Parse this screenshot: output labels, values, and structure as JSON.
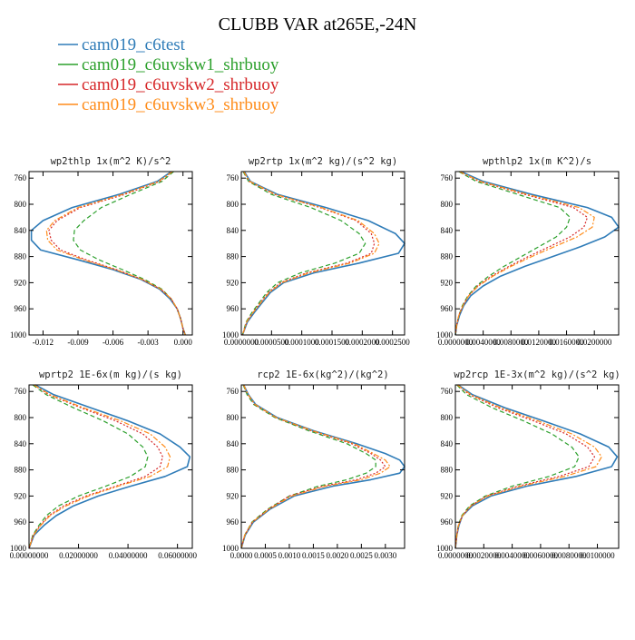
{
  "figure": {
    "title": "CLUBB VAR at265E,-24N",
    "colors": {
      "cam019_c6test": "#2f7cb8",
      "cam019_c6uvskw1_shrbuoy": "#2ca02c",
      "cam019_c6uvskw2_shrbuoy": "#d62728",
      "cam019_c6uvskw3_shrbuoy": "#ff8c1a"
    }
  },
  "legend": [
    {
      "name": "cam019_c6test",
      "color": "#2f7cb8",
      "style": "solid"
    },
    {
      "name": "cam019_c6uvskw1_shrbuoy",
      "color": "#2ca02c",
      "style": "dash"
    },
    {
      "name": "cam019_c6uvskw2_shrbuoy",
      "color": "#d62728",
      "style": "dot"
    },
    {
      "name": "cam019_c6uvskw3_shrbuoy",
      "color": "#ff8c1a",
      "style": "dashdot"
    }
  ],
  "chart_data": [
    {
      "type": "line",
      "title": "wp2thlp  1x(m^2 K)/s^2",
      "y": [
        750,
        765,
        785,
        805,
        825,
        840,
        855,
        870,
        885,
        900,
        915,
        930,
        945,
        960,
        975,
        990,
        1000
      ],
      "ylim": [
        1000,
        750
      ],
      "yticks": [
        "760",
        "800",
        "840",
        "880",
        "920",
        "960",
        "1000"
      ],
      "yticks_values": [
        760,
        800,
        840,
        880,
        920,
        960,
        1000
      ],
      "xlim": [
        -0.0132,
        0.0008
      ],
      "xticks": [
        "-0.012",
        "-0.009",
        "-0.006",
        "-0.003",
        "0.000"
      ],
      "xticks_values": [
        -0.012,
        -0.009,
        -0.006,
        -0.003,
        0.0
      ],
      "series": [
        {
          "name": "cam019_c6test",
          "values": [
            -0.001,
            -0.0022,
            -0.0055,
            -0.0095,
            -0.012,
            -0.013,
            -0.013,
            -0.0122,
            -0.009,
            -0.006,
            -0.0036,
            -0.002,
            -0.0011,
            -0.0005,
            -0.0002,
            0.0,
            0.0002
          ]
        },
        {
          "name": "cam019_c6uvskw1_shrbuoy",
          "values": [
            -0.0008,
            -0.0018,
            -0.0045,
            -0.007,
            -0.0085,
            -0.0093,
            -0.0094,
            -0.0088,
            -0.0072,
            -0.0052,
            -0.0033,
            -0.0018,
            -0.001,
            -0.0005,
            -0.0002,
            0.0,
            0.0002
          ]
        },
        {
          "name": "cam019_c6uvskw2_shrbuoy",
          "values": [
            -0.0009,
            -0.002,
            -0.005,
            -0.0088,
            -0.0108,
            -0.0115,
            -0.0113,
            -0.0105,
            -0.0083,
            -0.0057,
            -0.0035,
            -0.0019,
            -0.001,
            -0.0005,
            -0.0002,
            0.0,
            0.0002
          ]
        },
        {
          "name": "cam019_c6uvskw3_shrbuoy",
          "values": [
            -0.0009,
            -0.0021,
            -0.0052,
            -0.009,
            -0.011,
            -0.0117,
            -0.0116,
            -0.0108,
            -0.0085,
            -0.0058,
            -0.0035,
            -0.0019,
            -0.001,
            -0.0005,
            -0.0002,
            0.0,
            0.0002
          ]
        }
      ]
    },
    {
      "type": "line",
      "title": "wp2rtp  1x(m^2 kg)/(s^2 kg)",
      "y": [
        750,
        765,
        785,
        805,
        825,
        845,
        860,
        875,
        890,
        905,
        920,
        935,
        950,
        965,
        980,
        1000
      ],
      "ylim": [
        1000,
        750
      ],
      "yticks": [
        "760",
        "800",
        "840",
        "880",
        "920",
        "960",
        "1000"
      ],
      "yticks_values": [
        760,
        800,
        840,
        880,
        920,
        960,
        1000
      ],
      "xlim": [
        0,
        0.00027
      ],
      "xticks": [
        "0.0000000",
        "0.0000500",
        "0.0001000",
        "0.0001500",
        "0.0002000",
        "0.0002500"
      ],
      "xticks_values": [
        0,
        5e-05,
        0.0001,
        0.00015,
        0.0002,
        0.00025
      ],
      "series": [
        {
          "name": "cam019_c6test",
          "values": [
            5e-06,
            1.5e-05,
            6e-05,
            0.00014,
            0.00021,
            0.000255,
            0.00027,
            0.00026,
            0.000195,
            0.00012,
            7e-05,
            4.8e-05,
            3.5e-05,
            2.2e-05,
            1e-05,
            2e-06
          ]
        },
        {
          "name": "cam019_c6uvskw1_shrbuoy",
          "values": [
            3e-06,
            1.2e-05,
            5e-05,
            0.000115,
            0.000165,
            0.000195,
            0.000205,
            0.000195,
            0.000155,
            9.8e-05,
            6e-05,
            4.2e-05,
            3e-05,
            1.8e-05,
            8e-06,
            2e-06
          ]
        },
        {
          "name": "cam019_c6uvskw2_shrbuoy",
          "values": [
            4e-06,
            1.3e-05,
            5.5e-05,
            0.00013,
            0.00019,
            0.000215,
            0.00022,
            0.000215,
            0.000175,
            0.000108,
            6.5e-05,
            4.5e-05,
            3.2e-05,
            2e-05,
            9e-06,
            2e-06
          ]
        },
        {
          "name": "cam019_c6uvskw3_shrbuoy",
          "values": [
            4e-06,
            1.4e-05,
            5.7e-05,
            0.000132,
            0.000193,
            0.00022,
            0.000228,
            0.00022,
            0.00018,
            0.000112,
            6.7e-05,
            4.6e-05,
            3.3e-05,
            2e-05,
            9e-06,
            2e-06
          ]
        }
      ]
    },
    {
      "type": "line",
      "title": "wpthlp2  1x(m K^2)/s",
      "y": [
        750,
        765,
        785,
        805,
        820,
        835,
        850,
        865,
        880,
        895,
        910,
        925,
        940,
        955,
        970,
        985,
        1000
      ],
      "ylim": [
        1000,
        750
      ],
      "yticks": [
        "760",
        "800",
        "840",
        "880",
        "920",
        "960",
        "1000"
      ],
      "yticks_values": [
        760,
        800,
        840,
        880,
        920,
        960,
        1000
      ],
      "xlim": [
        0,
        0.0235
      ],
      "xticks": [
        "0.0000000",
        "0.0040000",
        "0.0080000",
        "0.0120000",
        "0.0160000",
        "0.0200000"
      ],
      "xticks_values": [
        0,
        0.004,
        0.008,
        0.012,
        0.016,
        0.02
      ],
      "series": [
        {
          "name": "cam019_c6test",
          "values": [
            0.0008,
            0.004,
            0.011,
            0.019,
            0.0225,
            0.0235,
            0.0215,
            0.018,
            0.014,
            0.01,
            0.0065,
            0.004,
            0.0022,
            0.0012,
            0.0006,
            0.0002,
            0.0
          ]
        },
        {
          "name": "cam019_c6uvskw1_shrbuoy",
          "values": [
            0.0005,
            0.003,
            0.009,
            0.015,
            0.0165,
            0.016,
            0.0145,
            0.012,
            0.0095,
            0.007,
            0.0048,
            0.003,
            0.0018,
            0.001,
            0.0005,
            0.0002,
            0.0
          ]
        },
        {
          "name": "cam019_c6uvskw2_shrbuoy",
          "values": [
            0.0006,
            0.0034,
            0.01,
            0.017,
            0.019,
            0.0185,
            0.0165,
            0.0135,
            0.0105,
            0.0077,
            0.0052,
            0.0032,
            0.0019,
            0.0011,
            0.0005,
            0.0002,
            0.0
          ]
        },
        {
          "name": "cam019_c6uvskw3_shrbuoy",
          "values": [
            0.0006,
            0.0036,
            0.0104,
            0.0178,
            0.02,
            0.0197,
            0.0175,
            0.0142,
            0.011,
            0.008,
            0.0054,
            0.0033,
            0.0019,
            0.0011,
            0.0005,
            0.0002,
            0.0
          ]
        }
      ]
    },
    {
      "type": "line",
      "title": "wprtp2  1E-6x(m kg)/(s kg)",
      "y": [
        750,
        765,
        785,
        805,
        825,
        845,
        860,
        875,
        890,
        905,
        920,
        935,
        950,
        965,
        980,
        1000
      ],
      "ylim": [
        1000,
        750
      ],
      "yticks": [
        "760",
        "800",
        "840",
        "880",
        "920",
        "960",
        "1000"
      ],
      "yticks_values": [
        760,
        800,
        840,
        880,
        920,
        960,
        1000
      ],
      "xlim": [
        0,
        0.066
      ],
      "xticks": [
        "0.00000000",
        "0.02000000",
        "0.04000000",
        "0.06000000"
      ],
      "xticks_values": [
        0,
        0.02,
        0.04,
        0.06
      ],
      "series": [
        {
          "name": "cam019_c6test",
          "values": [
            0.0025,
            0.01,
            0.025,
            0.04,
            0.053,
            0.061,
            0.065,
            0.064,
            0.055,
            0.041,
            0.028,
            0.018,
            0.011,
            0.006,
            0.002,
            0.0
          ]
        },
        {
          "name": "cam019_c6uvskw1_shrbuoy",
          "values": [
            0.0015,
            0.007,
            0.018,
            0.03,
            0.04,
            0.046,
            0.048,
            0.047,
            0.041,
            0.031,
            0.02,
            0.012,
            0.007,
            0.004,
            0.0015,
            0.0
          ]
        },
        {
          "name": "cam019_c6uvskw2_shrbuoy",
          "values": [
            0.002,
            0.008,
            0.021,
            0.035,
            0.046,
            0.052,
            0.054,
            0.053,
            0.047,
            0.035,
            0.023,
            0.014,
            0.008,
            0.0045,
            0.0017,
            0.0
          ]
        },
        {
          "name": "cam019_c6uvskw3_shrbuoy",
          "values": [
            0.002,
            0.0085,
            0.022,
            0.037,
            0.049,
            0.055,
            0.057,
            0.056,
            0.049,
            0.036,
            0.024,
            0.015,
            0.0085,
            0.0047,
            0.0018,
            0.0
          ]
        }
      ]
    },
    {
      "type": "line",
      "title": "rcp2  1E-6x(kg^2)/(kg^2)",
      "y": [
        750,
        765,
        780,
        800,
        820,
        840,
        855,
        865,
        875,
        885,
        895,
        905,
        920,
        940,
        960,
        980,
        1000
      ],
      "ylim": [
        1000,
        750
      ],
      "yticks": [
        "760",
        "800",
        "840",
        "880",
        "920",
        "960",
        "1000"
      ],
      "yticks_values": [
        760,
        800,
        840,
        880,
        920,
        960,
        1000
      ],
      "xlim": [
        0,
        0.0034
      ],
      "xticks": [
        "0.0000",
        "0.0005",
        "0.0010",
        "0.0015",
        "0.0020",
        "0.0025",
        "0.0030"
      ],
      "xticks_values": [
        0,
        0.0005,
        0.001,
        0.0015,
        0.002,
        0.0025,
        0.003
      ],
      "series": [
        {
          "name": "cam019_c6test",
          "values": [
            5e-05,
            0.00015,
            0.0003,
            0.00075,
            0.0015,
            0.0024,
            0.003,
            0.0033,
            0.0034,
            0.0033,
            0.0027,
            0.0019,
            0.0011,
            0.0006,
            0.00025,
            8e-05,
            0.0
          ]
        },
        {
          "name": "cam019_c6uvskw1_shrbuoy",
          "values": [
            4e-05,
            0.00012,
            0.00026,
            0.0007,
            0.0014,
            0.0022,
            0.0026,
            0.0028,
            0.0028,
            0.0026,
            0.0022,
            0.0016,
            0.001,
            0.00055,
            0.00022,
            7e-05,
            0.0
          ]
        },
        {
          "name": "cam019_c6uvskw2_shrbuoy",
          "values": [
            5e-05,
            0.00014,
            0.00028,
            0.00072,
            0.00145,
            0.0023,
            0.0027,
            0.0029,
            0.003,
            0.0028,
            0.0024,
            0.0017,
            0.001,
            0.00057,
            0.00023,
            7e-05,
            0.0
          ]
        },
        {
          "name": "cam019_c6uvskw3_shrbuoy",
          "values": [
            5e-05,
            0.00014,
            0.00029,
            0.00073,
            0.00148,
            0.00235,
            0.00275,
            0.003,
            0.0031,
            0.0029,
            0.0025,
            0.00175,
            0.00105,
            0.00058,
            0.00023,
            7e-05,
            0.0
          ]
        }
      ]
    },
    {
      "type": "line",
      "title": "wp2rcp  1E-3x(m^2 kg)/(s^2 kg)",
      "y": [
        750,
        765,
        785,
        805,
        825,
        845,
        860,
        875,
        890,
        905,
        920,
        935,
        950,
        965,
        980,
        1000
      ],
      "ylim": [
        1000,
        750
      ],
      "yticks": [
        "760",
        "800",
        "840",
        "880",
        "920",
        "960",
        "1000"
      ],
      "yticks_values": [
        760,
        800,
        840,
        880,
        920,
        960,
        1000
      ],
      "xlim": [
        0,
        0.0115
      ],
      "xticks": [
        "0.0000000",
        "0.0020000",
        "0.0040000",
        "0.0060000",
        "0.0080000",
        "0.0100000"
      ],
      "xticks_values": [
        0,
        0.002,
        0.004,
        0.006,
        0.008,
        0.01
      ],
      "series": [
        {
          "name": "cam019_c6test",
          "values": [
            0.0002,
            0.0012,
            0.0035,
            0.0062,
            0.0088,
            0.0108,
            0.0114,
            0.011,
            0.0085,
            0.005,
            0.0025,
            0.0012,
            0.0005,
            0.00025,
            0.0001,
            0.0
          ]
        },
        {
          "name": "cam019_c6uvskw1_shrbuoy",
          "values": [
            0.0001,
            0.0008,
            0.0026,
            0.0048,
            0.0068,
            0.0082,
            0.0087,
            0.0084,
            0.0066,
            0.004,
            0.0021,
            0.001,
            0.00045,
            0.0002,
            0.0001,
            0.0
          ]
        },
        {
          "name": "cam019_c6uvskw2_shrbuoy",
          "values": [
            0.00015,
            0.001,
            0.003,
            0.0055,
            0.0078,
            0.0093,
            0.0098,
            0.0094,
            0.0073,
            0.0044,
            0.0022,
            0.0011,
            0.0005,
            0.00022,
            0.0001,
            0.0
          ]
        },
        {
          "name": "cam019_c6uvskw3_shrbuoy",
          "values": [
            0.00015,
            0.0011,
            0.0032,
            0.0058,
            0.0082,
            0.0098,
            0.0103,
            0.0099,
            0.0077,
            0.0046,
            0.0023,
            0.0011,
            0.0005,
            0.00022,
            0.0001,
            0.0
          ]
        }
      ]
    }
  ]
}
